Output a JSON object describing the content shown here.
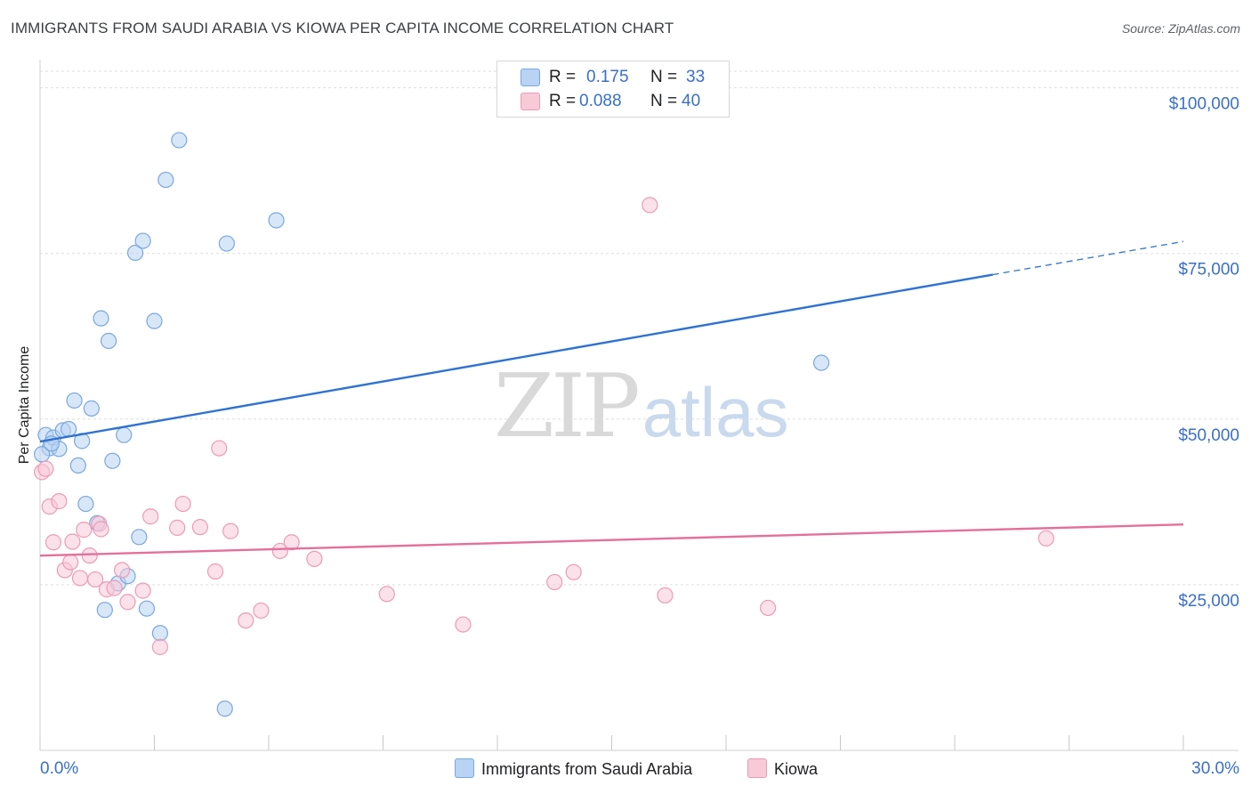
{
  "title": "IMMIGRANTS FROM SAUDI ARABIA VS KIOWA PER CAPITA INCOME CORRELATION CHART",
  "source": "Source: ZipAtlas.com",
  "watermark": {
    "zip": "ZIP",
    "atlas": "atlas"
  },
  "legend": {
    "rows": [
      {
        "r_label": "R =",
        "r_value": "0.175",
        "n_label": "N =",
        "n_value": "33"
      },
      {
        "r_label": "R =",
        "r_value": "0.088",
        "n_label": "N =",
        "n_value": "40"
      }
    ]
  },
  "colors": {
    "blue_fill": "#b8d3f3",
    "blue_stroke": "#7aa7df",
    "blue_line": "#2f72d2",
    "pink_fill": "#f8c9d7",
    "pink_stroke": "#eb9bb6",
    "pink_line": "#e3709a",
    "axis_text": "#3a6fc6",
    "grid": "#dedede"
  },
  "chart_data": {
    "type": "scatter",
    "title": "IMMIGRANTS FROM SAUDI ARABIA VS KIOWA PER CAPITA INCOME CORRELATION CHART",
    "xlabel": "",
    "ylabel": "Per Capita Income",
    "xlim": [
      0,
      30
    ],
    "ylim": [
      0,
      102500
    ],
    "x_tick_labels": [
      "0.0%",
      "30.0%"
    ],
    "y_ticks": [
      25000,
      50000,
      75000,
      100000
    ],
    "y_tick_labels": [
      "$25,000",
      "$50,000",
      "$75,000",
      "$100,000"
    ],
    "series": [
      {
        "name": "Immigrants from Saudi Arabia",
        "color": "blue",
        "R": 0.175,
        "N": 33,
        "points": [
          [
            0.15,
            47600
          ],
          [
            0.25,
            45600
          ],
          [
            0.35,
            47200
          ],
          [
            0.5,
            45500
          ],
          [
            0.6,
            48300
          ],
          [
            0.75,
            48500
          ],
          [
            0.9,
            52800
          ],
          [
            1.0,
            43000
          ],
          [
            1.1,
            46700
          ],
          [
            1.2,
            37200
          ],
          [
            1.35,
            51600
          ],
          [
            1.5,
            34300
          ],
          [
            1.6,
            65200
          ],
          [
            1.7,
            21200
          ],
          [
            1.8,
            61800
          ],
          [
            1.9,
            43700
          ],
          [
            2.05,
            25200
          ],
          [
            2.2,
            47600
          ],
          [
            2.3,
            26300
          ],
          [
            2.5,
            75100
          ],
          [
            2.6,
            32200
          ],
          [
            2.7,
            76900
          ],
          [
            2.8,
            21400
          ],
          [
            3.0,
            64800
          ],
          [
            3.15,
            17700
          ],
          [
            3.3,
            86100
          ],
          [
            3.65,
            92100
          ],
          [
            4.85,
            6300
          ],
          [
            4.9,
            76500
          ],
          [
            6.2,
            80000
          ],
          [
            20.5,
            58500
          ],
          [
            0.05,
            44700
          ],
          [
            0.3,
            46300
          ]
        ],
        "trend": {
          "x0": 0,
          "y0": 46600,
          "x1": 25,
          "y1": 71800,
          "dashed_to_x": 30,
          "dashed_to_y": 76800
        }
      },
      {
        "name": "Kiowa",
        "color": "pink",
        "R": 0.088,
        "N": 40,
        "points": [
          [
            0.05,
            42000
          ],
          [
            0.25,
            36800
          ],
          [
            0.35,
            31400
          ],
          [
            0.5,
            37600
          ],
          [
            0.65,
            27200
          ],
          [
            0.8,
            28400
          ],
          [
            0.85,
            31500
          ],
          [
            1.05,
            26000
          ],
          [
            1.15,
            33300
          ],
          [
            1.3,
            29400
          ],
          [
            1.45,
            25800
          ],
          [
            1.55,
            34200
          ],
          [
            1.6,
            33400
          ],
          [
            1.75,
            24300
          ],
          [
            1.95,
            24500
          ],
          [
            2.15,
            27200
          ],
          [
            2.3,
            22400
          ],
          [
            2.7,
            24100
          ],
          [
            2.9,
            35300
          ],
          [
            3.15,
            15600
          ],
          [
            3.6,
            33600
          ],
          [
            3.75,
            37200
          ],
          [
            4.2,
            33700
          ],
          [
            4.6,
            27000
          ],
          [
            4.7,
            45600
          ],
          [
            5.0,
            33100
          ],
          [
            5.4,
            19600
          ],
          [
            5.8,
            21100
          ],
          [
            6.3,
            30100
          ],
          [
            6.6,
            31400
          ],
          [
            7.2,
            28900
          ],
          [
            9.1,
            23600
          ],
          [
            11.1,
            19000
          ],
          [
            13.5,
            25400
          ],
          [
            14.0,
            26900
          ],
          [
            16.0,
            82300
          ],
          [
            16.4,
            23400
          ],
          [
            19.1,
            21500
          ],
          [
            26.4,
            32000
          ],
          [
            0.15,
            42500
          ]
        ],
        "trend": {
          "x0": 0,
          "y0": 29400,
          "x1": 30,
          "y1": 34100
        }
      }
    ]
  },
  "bottom_legend": [
    {
      "label": "Immigrants from Saudi Arabia",
      "color": "blue"
    },
    {
      "label": "Kiowa",
      "color": "pink"
    }
  ]
}
